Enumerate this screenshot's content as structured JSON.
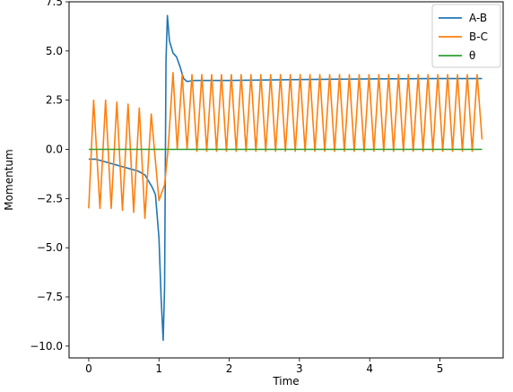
{
  "chart_data": {
    "type": "line",
    "title": "",
    "xlabel": "Time",
    "ylabel": "Momentum",
    "xlim": [
      -0.28,
      5.9
    ],
    "ylim": [
      -10.6,
      7.5
    ],
    "xticks": [
      0,
      1,
      2,
      3,
      4,
      5
    ],
    "xtick_labels": [
      "0",
      "1",
      "2",
      "3",
      "4",
      "5"
    ],
    "yticks": [
      -10.0,
      -7.5,
      -5.0,
      -2.5,
      0.0,
      2.5,
      5.0,
      7.5
    ],
    "ytick_labels": [
      "−10.0",
      "−7.5",
      "−5.0",
      "−2.5",
      "0.0",
      "2.5",
      "5.0",
      "7.5"
    ],
    "grid": false,
    "legend_position": "top-right",
    "series": [
      {
        "name": "A-B",
        "color": "#1f77b4",
        "x": [
          0,
          0.1,
          0.2,
          0.3,
          0.4,
          0.5,
          0.6,
          0.7,
          0.8,
          0.85,
          0.9,
          0.95,
          1.0,
          1.03,
          1.06,
          1.08,
          1.1,
          1.12,
          1.15,
          1.2,
          1.25,
          1.3,
          1.35,
          1.4,
          1.5,
          1.7,
          2.0,
          3.0,
          4.0,
          5.0,
          5.6
        ],
        "y": [
          -0.5,
          -0.5,
          -0.6,
          -0.7,
          -0.8,
          -0.9,
          -1.0,
          -1.1,
          -1.3,
          -1.6,
          -1.9,
          -2.3,
          -4.5,
          -7.5,
          -9.7,
          -7.0,
          4.5,
          6.8,
          5.5,
          4.9,
          4.7,
          4.2,
          3.6,
          3.45,
          3.5,
          3.5,
          3.5,
          3.55,
          3.58,
          3.6,
          3.6
        ]
      },
      {
        "name": "B-C",
        "color": "#ff7f0e",
        "x": [
          0,
          0.07,
          0.16,
          0.24,
          0.32,
          0.4,
          0.48,
          0.56,
          0.64,
          0.72,
          0.8,
          0.89,
          1.0,
          1.08,
          1.13,
          1.2,
          1.26,
          1.33,
          1.4,
          1.47,
          1.54,
          1.61,
          1.68,
          1.75,
          1.82,
          1.89,
          1.96,
          2.03,
          2.1,
          2.17,
          2.24,
          2.31,
          2.38,
          2.45,
          2.52,
          2.59,
          2.66,
          2.73,
          2.8,
          2.87,
          2.94,
          3.01,
          3.08,
          3.15,
          3.22,
          3.29,
          3.36,
          3.43,
          3.5,
          3.57,
          3.64,
          3.71,
          3.78,
          3.85,
          3.92,
          3.99,
          4.06,
          4.13,
          4.2,
          4.27,
          4.34,
          4.41,
          4.48,
          4.55,
          4.62,
          4.69,
          4.76,
          4.83,
          4.9,
          4.97,
          5.04,
          5.11,
          5.18,
          5.25,
          5.32,
          5.39,
          5.46,
          5.53,
          5.6
        ],
        "y": [
          -3.0,
          2.5,
          -3.0,
          2.5,
          -3.0,
          2.4,
          -3.1,
          2.3,
          -3.2,
          2.1,
          -3.5,
          1.8,
          -2.6,
          -1.8,
          0.0,
          3.9,
          0.0,
          3.8,
          0.0,
          3.8,
          -0.1,
          3.8,
          -0.1,
          3.8,
          -0.1,
          3.8,
          -0.1,
          3.8,
          -0.1,
          3.8,
          -0.1,
          3.8,
          -0.1,
          3.8,
          -0.1,
          3.8,
          -0.1,
          3.8,
          -0.1,
          3.8,
          -0.1,
          3.8,
          -0.1,
          3.8,
          -0.1,
          3.8,
          -0.1,
          3.8,
          -0.1,
          3.8,
          -0.1,
          3.8,
          -0.1,
          3.8,
          -0.1,
          3.8,
          -0.1,
          3.8,
          -0.1,
          3.8,
          -0.1,
          3.8,
          -0.1,
          3.8,
          -0.1,
          3.8,
          -0.1,
          3.8,
          -0.1,
          3.8,
          -0.1,
          3.8,
          -0.1,
          3.8,
          -0.1,
          3.8,
          -0.1,
          3.8,
          0.5
        ]
      },
      {
        "name": "θ",
        "color": "#2ca02c",
        "x": [
          0,
          5.6
        ],
        "y": [
          0.0,
          0.0
        ]
      }
    ]
  }
}
